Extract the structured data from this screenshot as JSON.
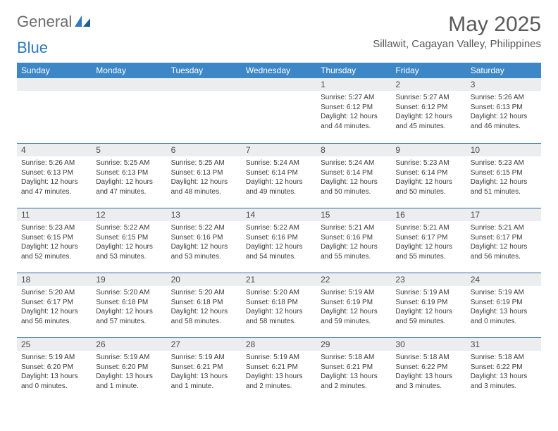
{
  "logo": {
    "word1": "General",
    "word2": "Blue"
  },
  "month_title": "May 2025",
  "location": "Sillawit, Cagayan Valley, Philippines",
  "colors": {
    "header_bg": "#3d87c7",
    "header_text": "#ffffff",
    "daynum_bg": "#ebedef",
    "row_divider": "#2f6aa3",
    "body_text": "#3a3a3a",
    "title_text": "#5a5a5a",
    "logo_gray": "#6b6b6b",
    "logo_blue": "#2f7bbf"
  },
  "day_headers": [
    "Sunday",
    "Monday",
    "Tuesday",
    "Wednesday",
    "Thursday",
    "Friday",
    "Saturday"
  ],
  "weeks": [
    [
      null,
      null,
      null,
      null,
      {
        "n": "1",
        "sunrise": "5:27 AM",
        "sunset": "6:12 PM",
        "daylight": "12 hours and 44 minutes."
      },
      {
        "n": "2",
        "sunrise": "5:27 AM",
        "sunset": "6:12 PM",
        "daylight": "12 hours and 45 minutes."
      },
      {
        "n": "3",
        "sunrise": "5:26 AM",
        "sunset": "6:13 PM",
        "daylight": "12 hours and 46 minutes."
      }
    ],
    [
      {
        "n": "4",
        "sunrise": "5:26 AM",
        "sunset": "6:13 PM",
        "daylight": "12 hours and 47 minutes."
      },
      {
        "n": "5",
        "sunrise": "5:25 AM",
        "sunset": "6:13 PM",
        "daylight": "12 hours and 47 minutes."
      },
      {
        "n": "6",
        "sunrise": "5:25 AM",
        "sunset": "6:13 PM",
        "daylight": "12 hours and 48 minutes."
      },
      {
        "n": "7",
        "sunrise": "5:24 AM",
        "sunset": "6:14 PM",
        "daylight": "12 hours and 49 minutes."
      },
      {
        "n": "8",
        "sunrise": "5:24 AM",
        "sunset": "6:14 PM",
        "daylight": "12 hours and 50 minutes."
      },
      {
        "n": "9",
        "sunrise": "5:23 AM",
        "sunset": "6:14 PM",
        "daylight": "12 hours and 50 minutes."
      },
      {
        "n": "10",
        "sunrise": "5:23 AM",
        "sunset": "6:15 PM",
        "daylight": "12 hours and 51 minutes."
      }
    ],
    [
      {
        "n": "11",
        "sunrise": "5:23 AM",
        "sunset": "6:15 PM",
        "daylight": "12 hours and 52 minutes."
      },
      {
        "n": "12",
        "sunrise": "5:22 AM",
        "sunset": "6:15 PM",
        "daylight": "12 hours and 53 minutes."
      },
      {
        "n": "13",
        "sunrise": "5:22 AM",
        "sunset": "6:16 PM",
        "daylight": "12 hours and 53 minutes."
      },
      {
        "n": "14",
        "sunrise": "5:22 AM",
        "sunset": "6:16 PM",
        "daylight": "12 hours and 54 minutes."
      },
      {
        "n": "15",
        "sunrise": "5:21 AM",
        "sunset": "6:16 PM",
        "daylight": "12 hours and 55 minutes."
      },
      {
        "n": "16",
        "sunrise": "5:21 AM",
        "sunset": "6:17 PM",
        "daylight": "12 hours and 55 minutes."
      },
      {
        "n": "17",
        "sunrise": "5:21 AM",
        "sunset": "6:17 PM",
        "daylight": "12 hours and 56 minutes."
      }
    ],
    [
      {
        "n": "18",
        "sunrise": "5:20 AM",
        "sunset": "6:17 PM",
        "daylight": "12 hours and 56 minutes."
      },
      {
        "n": "19",
        "sunrise": "5:20 AM",
        "sunset": "6:18 PM",
        "daylight": "12 hours and 57 minutes."
      },
      {
        "n": "20",
        "sunrise": "5:20 AM",
        "sunset": "6:18 PM",
        "daylight": "12 hours and 58 minutes."
      },
      {
        "n": "21",
        "sunrise": "5:20 AM",
        "sunset": "6:18 PM",
        "daylight": "12 hours and 58 minutes."
      },
      {
        "n": "22",
        "sunrise": "5:19 AM",
        "sunset": "6:19 PM",
        "daylight": "12 hours and 59 minutes."
      },
      {
        "n": "23",
        "sunrise": "5:19 AM",
        "sunset": "6:19 PM",
        "daylight": "12 hours and 59 minutes."
      },
      {
        "n": "24",
        "sunrise": "5:19 AM",
        "sunset": "6:19 PM",
        "daylight": "13 hours and 0 minutes."
      }
    ],
    [
      {
        "n": "25",
        "sunrise": "5:19 AM",
        "sunset": "6:20 PM",
        "daylight": "13 hours and 0 minutes."
      },
      {
        "n": "26",
        "sunrise": "5:19 AM",
        "sunset": "6:20 PM",
        "daylight": "13 hours and 1 minute."
      },
      {
        "n": "27",
        "sunrise": "5:19 AM",
        "sunset": "6:21 PM",
        "daylight": "13 hours and 1 minute."
      },
      {
        "n": "28",
        "sunrise": "5:19 AM",
        "sunset": "6:21 PM",
        "daylight": "13 hours and 2 minutes."
      },
      {
        "n": "29",
        "sunrise": "5:18 AM",
        "sunset": "6:21 PM",
        "daylight": "13 hours and 2 minutes."
      },
      {
        "n": "30",
        "sunrise": "5:18 AM",
        "sunset": "6:22 PM",
        "daylight": "13 hours and 3 minutes."
      },
      {
        "n": "31",
        "sunrise": "5:18 AM",
        "sunset": "6:22 PM",
        "daylight": "13 hours and 3 minutes."
      }
    ]
  ],
  "labels": {
    "sunrise": "Sunrise: ",
    "sunset": "Sunset: ",
    "daylight": "Daylight: "
  }
}
